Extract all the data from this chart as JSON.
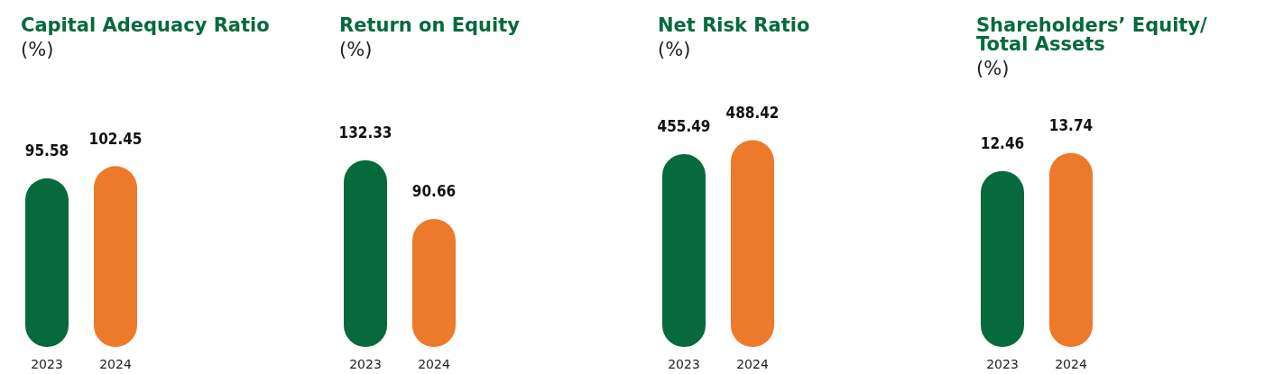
{
  "chart_data": [
    {
      "type": "bar",
      "title": "Capital Adequacy Ratio",
      "subtitle": "(%)",
      "categories": [
        "2023",
        "2024"
      ],
      "values": [
        95.58,
        102.45
      ],
      "colors": [
        "#066a3c",
        "#ed7a2a"
      ],
      "data_labels": true
    },
    {
      "type": "bar",
      "title": "Return on Equity",
      "subtitle": "(%)",
      "categories": [
        "2023",
        "2024"
      ],
      "values": [
        132.33,
        90.66
      ],
      "colors": [
        "#066a3c",
        "#ed7a2a"
      ],
      "data_labels": true
    },
    {
      "type": "bar",
      "title": "Net Risk Ratio",
      "subtitle": "(%)",
      "categories": [
        "2023",
        "2024"
      ],
      "values": [
        455.49,
        488.42
      ],
      "colors": [
        "#066a3c",
        "#ed7a2a"
      ],
      "data_labels": true
    },
    {
      "type": "bar",
      "title": "Shareholders’ Equity/Total Assets",
      "subtitle": "(%)",
      "categories": [
        "2023",
        "2024"
      ],
      "values": [
        12.46,
        13.74
      ],
      "colors": [
        "#066a3c",
        "#ed7a2a"
      ],
      "data_labels": true
    }
  ]
}
